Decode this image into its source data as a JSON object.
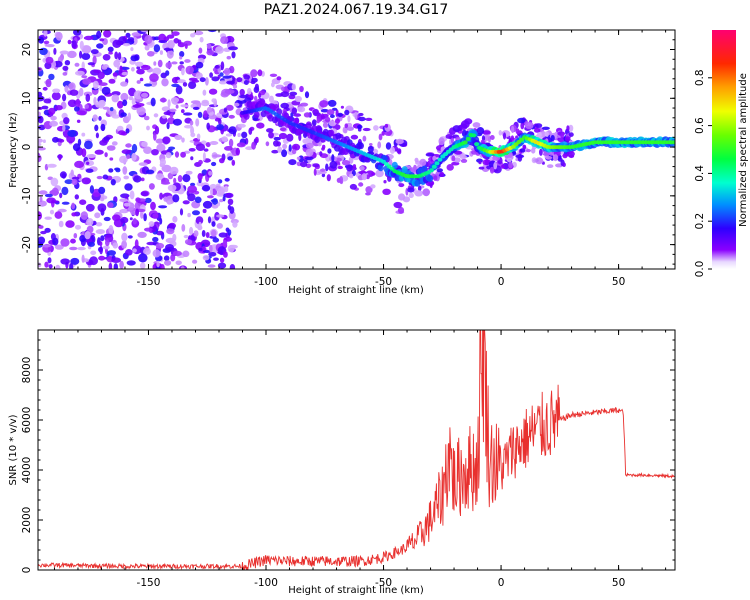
{
  "figure": {
    "title": "PAZ1.2024.067.19.34.G17"
  },
  "chart_data": [
    {
      "type": "heatmap",
      "xlabel": "Height of straight line (km)",
      "ylabel": "Frequency (Hz)",
      "xlim": [
        -197,
        74
      ],
      "ylim": [
        -25,
        24
      ],
      "xticks": [
        -150,
        -100,
        -50,
        0,
        50
      ],
      "yticks": [
        -20,
        -10,
        0,
        10,
        20
      ],
      "colorbar": {
        "label": "Normalized spectral amplitude",
        "range": [
          0.0,
          1.0
        ],
        "ticks": [
          "0.0",
          "0.2",
          "0.4",
          "0.6",
          "0.8"
        ],
        "tick_values": [
          0.0,
          0.2,
          0.4,
          0.6,
          0.8
        ],
        "colormap": "gist_rainbow_r"
      },
      "ridge": {
        "x": [
          -110,
          -100,
          -90,
          -80,
          -70,
          -60,
          -50,
          -45,
          -40,
          -35,
          -30,
          -25,
          -20,
          -15,
          -12,
          -10,
          -5,
          0,
          5,
          10,
          15,
          20,
          30,
          40,
          50,
          60,
          74
        ],
        "y": [
          7,
          8,
          5,
          3,
          1,
          -1,
          -3,
          -5,
          -6,
          -6,
          -5,
          -2,
          0,
          1,
          3,
          0,
          -1,
          -1,
          0,
          2,
          1,
          0,
          0,
          1,
          1,
          1,
          1
        ],
        "amplitude": [
          0.15,
          0.25,
          0.2,
          0.2,
          0.25,
          0.3,
          0.35,
          0.45,
          0.5,
          0.45,
          0.4,
          0.35,
          0.4,
          0.5,
          0.45,
          0.4,
          0.6,
          0.9,
          0.6,
          0.5,
          0.7,
          0.6,
          0.5,
          0.5,
          0.5,
          0.5,
          0.5
        ]
      }
    },
    {
      "type": "line",
      "xlabel": "Height of straight line (km)",
      "ylabel": "SNR (10 * v/v)",
      "xlim": [
        -197,
        74
      ],
      "ylim": [
        0,
        9600
      ],
      "xticks": [
        -150,
        -100,
        -50,
        0,
        50
      ],
      "yticks": [
        0,
        2000,
        4000,
        6000,
        8000
      ],
      "series": [
        {
          "color": "#e8302e",
          "x": [
            -197,
            -180,
            -160,
            -140,
            -120,
            -110,
            -100,
            -90,
            -80,
            -70,
            -60,
            -50,
            -45,
            -40,
            -35,
            -30,
            -25,
            -22,
            -20,
            -15,
            -10,
            -8,
            -5,
            0,
            5,
            10,
            15,
            20,
            25,
            30,
            40,
            50,
            52,
            53,
            60,
            74
          ],
          "y": [
            200,
            180,
            150,
            150,
            150,
            150,
            400,
            350,
            350,
            350,
            350,
            500,
            700,
            900,
            1300,
            2000,
            3000,
            4800,
            3500,
            4000,
            4200,
            9600,
            4500,
            4000,
            4800,
            5200,
            5600,
            5800,
            6000,
            6200,
            6300,
            6400,
            6300,
            3800,
            3800,
            3750
          ]
        }
      ]
    }
  ]
}
